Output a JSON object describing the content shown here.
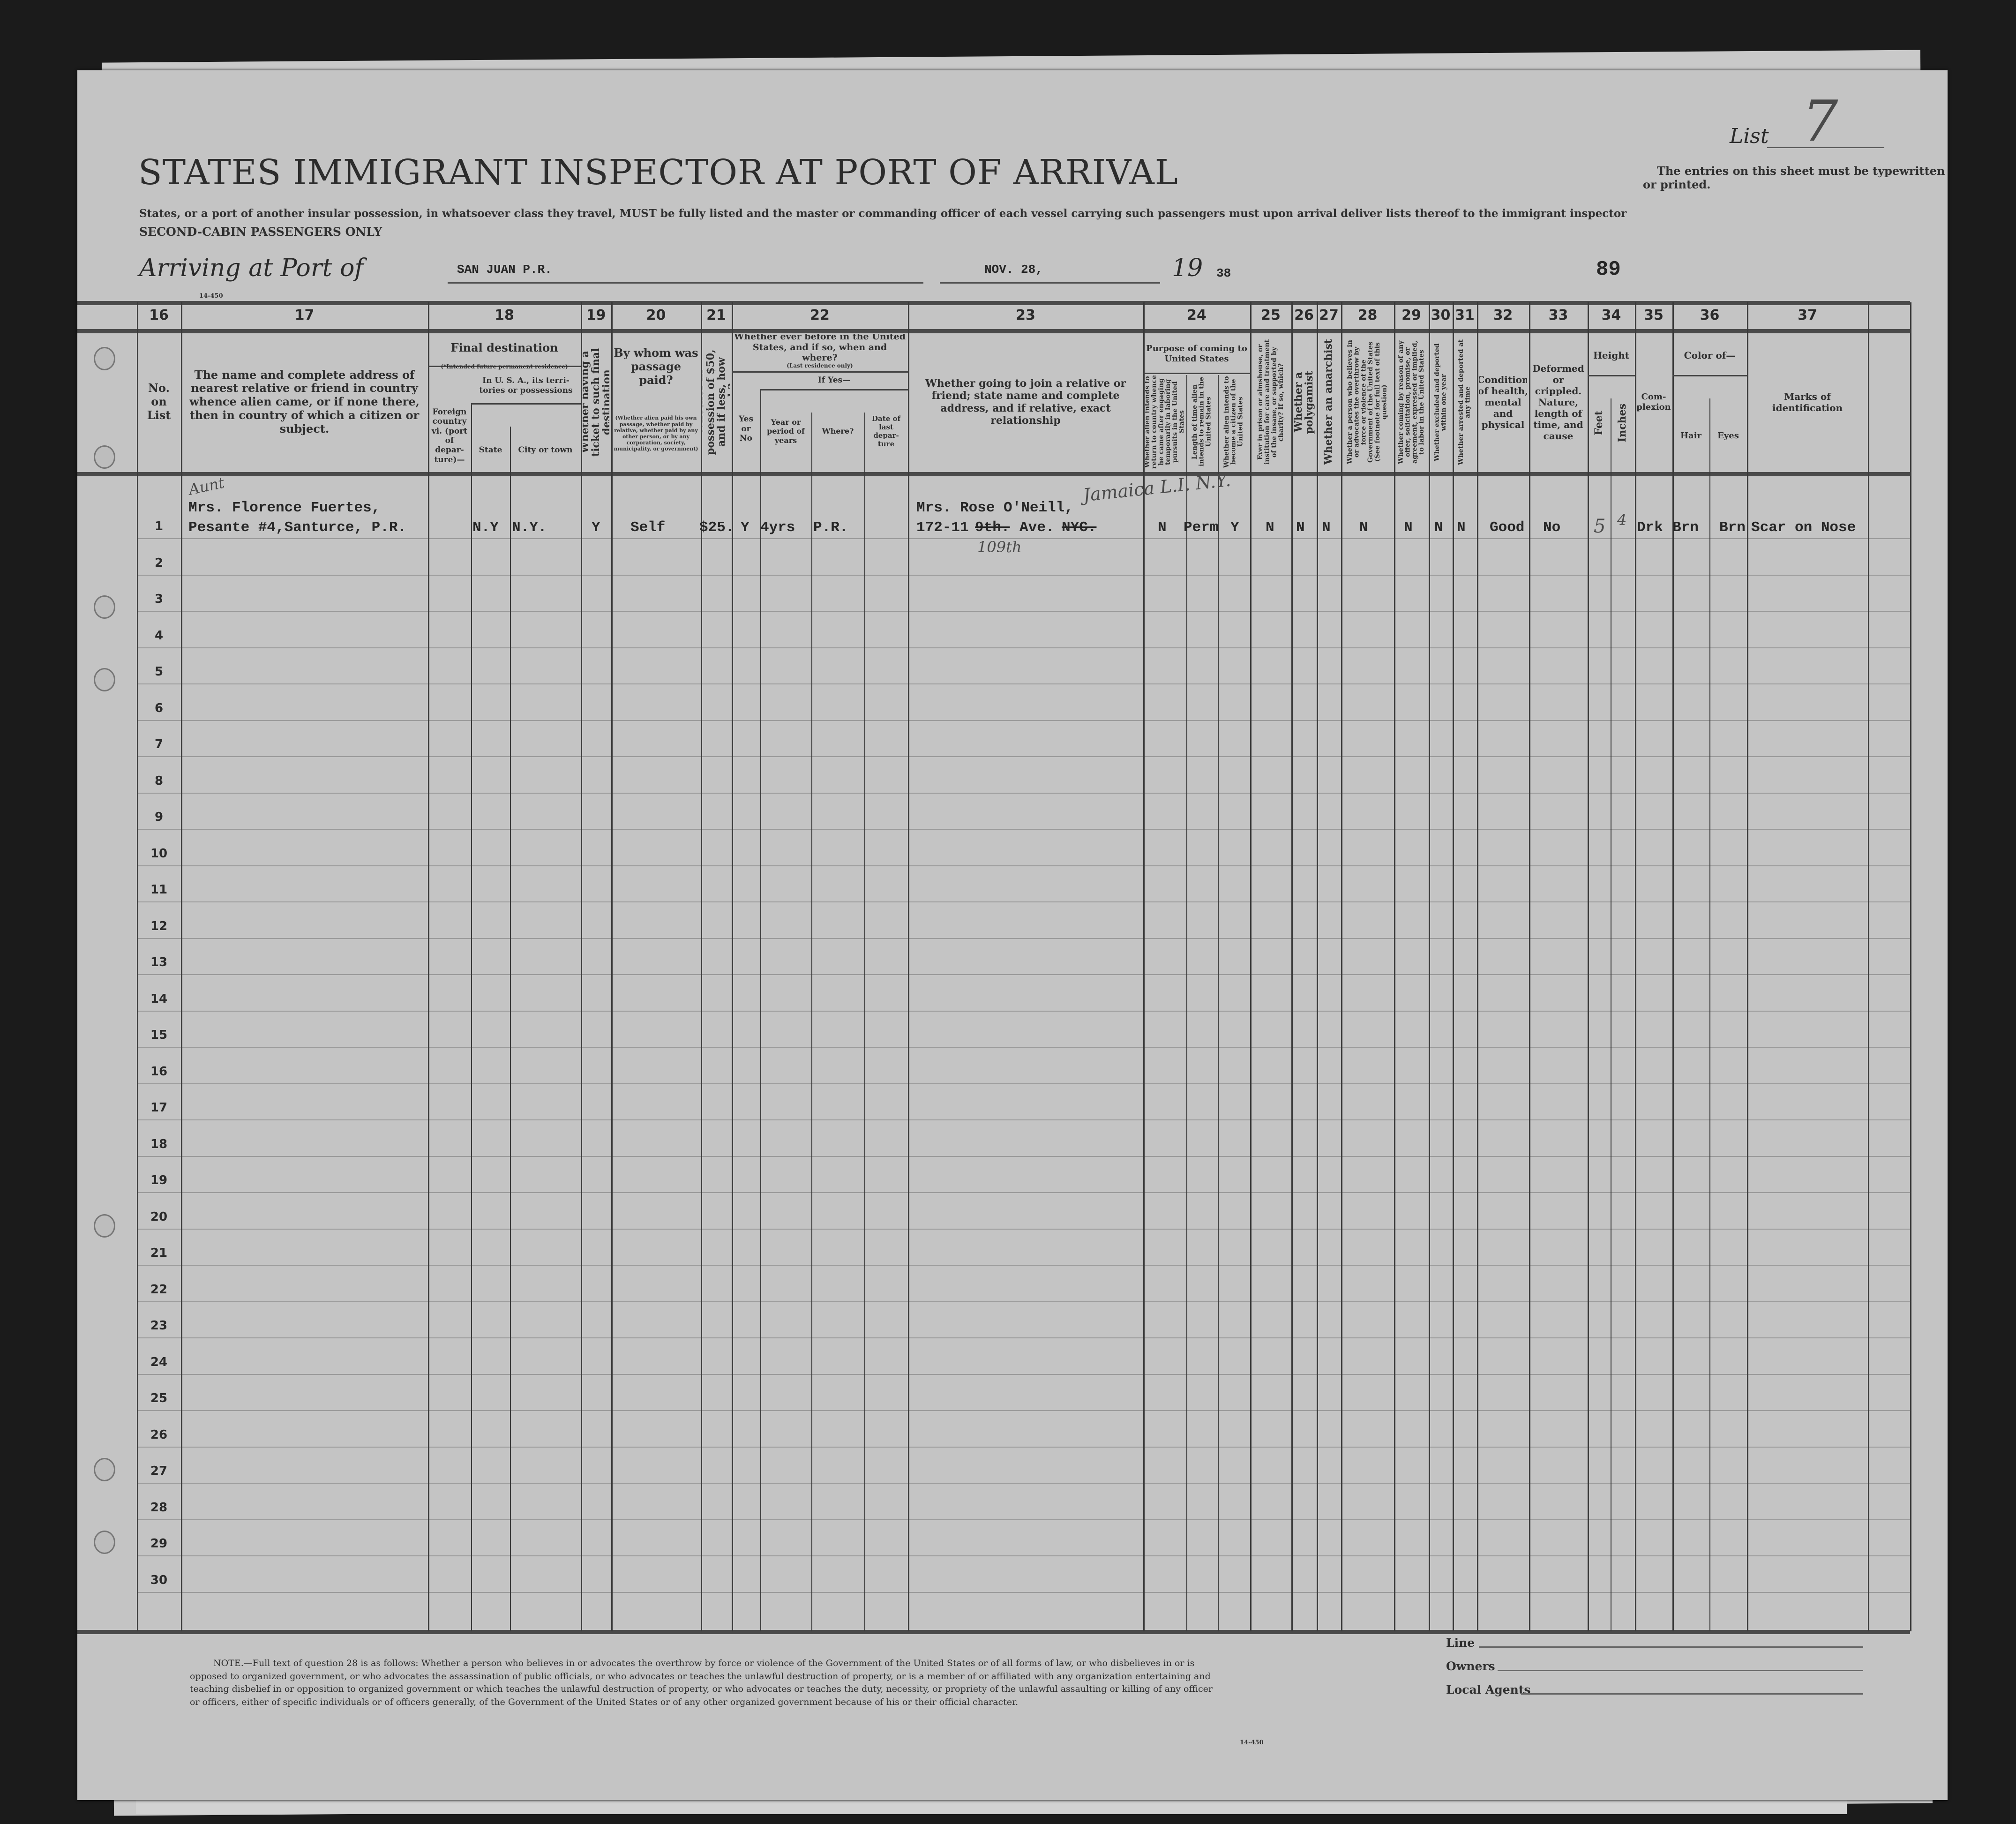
{
  "header": {
    "list_label": "List",
    "list_number": "7",
    "title": "STATES IMMIGRANT INSPECTOR AT PORT OF ARRIVAL",
    "instruction_line": "States, or a port of another insular possession, in whatsoever class they travel, MUST be fully listed and the master or commanding officer of each vessel carrying such passengers must upon arrival deliver lists thereof to the immigrant inspector",
    "cabin_class": "SECOND-CABIN PASSENGERS ONLY",
    "entries_notice": "The entries on this sheet must be typewritten or printed.",
    "arriving_label": "Arriving at Port of",
    "port": "SAN JUAN  P.R.",
    "date": "NOV. 28,",
    "year_prefix": "19",
    "year_suffix": "38",
    "sheet_number": "89",
    "form_number": "14-450"
  },
  "columns": {
    "numbers": [
      "16",
      "17",
      "18",
      "19",
      "20",
      "21",
      "22",
      "23",
      "24",
      "25",
      "26",
      "27",
      "28",
      "29",
      "30",
      "31",
      "32",
      "33",
      "34",
      "35",
      "36",
      "37"
    ],
    "c16": "No. on List",
    "c17": "The name and complete address of nearest relative or friend in country whence alien came, or if none there, then in country of which a citizen or subject.",
    "c18": "Final destination",
    "c18_note": "(*Intended future permanent residence)",
    "c18_foreign": "Foreign country vi. (port of depar-ture)—",
    "c18_usa": "In U. S. A., its terri-tories or possessions",
    "c18_state": "State",
    "c18_city": "City or town",
    "c19": "Whether having a ticket to such final destination",
    "c20": "By whom was passage paid?",
    "c20_note": "(Whether alien paid his own passage, whether paid by relative, whether paid by any other person, or by any corporation, society, municipality, or government)",
    "c21": "Whether in possession of $50, and if less, how much?",
    "c22": "Whether ever before in the United States, and if so, when and where?",
    "c22_note": "(Last residence only)",
    "c22_yesno": "Yes or No",
    "c22_ifyes": "If Yes—",
    "c22_year": "Year or period of years",
    "c22_where": "Where?",
    "c22_date": "Date of last depar-ture",
    "c23": "Whether going to join a relative or friend; state name and complete address, and if relative, exact relationship",
    "c24": "Purpose of coming to United States",
    "c24a": "Whether alien intends to return to country whence he came after engaging temporarily in laboring pursuits in the United States",
    "c24b": "Length of time alien intends to remain in the United States",
    "c24c": "Whether alien intends to become a citizen of the United States",
    "c25": "Ever in prison or almshouse, or institution for care and treatment of the insane, or supported by charity? If so, which?",
    "c26": "Whether a polygamist",
    "c27": "Whether an anarchist",
    "c28": "Whether a person who believes in or advocates the overthrow by force or violence of the Government of the United States (See footnote for full text of this question)",
    "c29": "Whether coming by reason of any offer, solicitation, promise, or agreement, expressed or implied, to labor in the United States",
    "c30": "Whether excluded and deported within one year",
    "c31": "Whether arrested and deported at any time",
    "c32": "Condition of health, mental and physical",
    "c33": "Deformed or crippled. Nature, length of time, and cause",
    "c34": "Height",
    "c34_feet": "Feet",
    "c34_inches": "Inches",
    "c35": "Com-plexion",
    "c36": "Color of—",
    "c36_hair": "Hair",
    "c36_eyes": "Eyes",
    "c37": "Marks of identification"
  },
  "row_numbers": [
    "1",
    "2",
    "3",
    "4",
    "5",
    "6",
    "7",
    "8",
    "9",
    "10",
    "11",
    "12",
    "13",
    "14",
    "15",
    "16",
    "17",
    "18",
    "19",
    "20",
    "21",
    "22",
    "23",
    "24",
    "25",
    "26",
    "27",
    "28",
    "29",
    "30"
  ],
  "entries": [
    {
      "relative_annotation": "Aunt",
      "relative_name": "Mrs. Florence Fuertes,",
      "relative_address": "Pesante #4,Santurce, P.R.",
      "dest_state": "N.Y",
      "dest_city": "N.Y.",
      "ticket": "Y",
      "passage_paid_by": "Self",
      "money": "$25.",
      "before_in_us": "Y",
      "period": "4yrs",
      "where": "P.R.",
      "joining_name": "Mrs. Rose O'Neill,",
      "joining_addr_num": "172-11",
      "joining_addr_struck_street": "9th.",
      "joining_addr_ave": "Ave.",
      "joining_addr_struck_city": "NYC.",
      "joining_hand_street": "109th",
      "joining_hand_city": "Jamaica L.I. N.Y.",
      "return_temporarily": "N",
      "length_of_stay": "Perm",
      "become_citizen": "Y",
      "prison": "N",
      "polygamist": "N",
      "anarchist": "N",
      "overthrow": "N",
      "labor_offer": "N",
      "excluded": "N",
      "arrested": "N",
      "health": "Good",
      "deformed": "No",
      "height_feet": "5",
      "height_inches": "4",
      "complexion": "Drk",
      "hair": "Brn",
      "eyes": "Brn",
      "marks": "Scar on Nose"
    }
  ],
  "footer": {
    "note": "NOTE.—Full text of question 28 is as follows: Whether a person who believes in or advocates the overthrow by force or violence of the Government of the United States or of all forms of law, or who disbelieves in or is opposed to organized government, or who advocates the assassination of public officials, or who advocates or teaches the unlawful destruction of property, or is a member of or affiliated with any organization entertaining and teaching disbelief in or opposition to organized government or which teaches the unlawful destruction of property, or who advocates or teaches the duty, necessity, or propriety of the unlawful assaulting or killing of any officer or officers, either of specific individuals or of officers generally, of the Government of the United States or of any other organized government because of his or their official character.",
    "form_number": "14-450",
    "line_label": "Line",
    "owners_label": "Owners",
    "agents_label": "Local Agents"
  }
}
